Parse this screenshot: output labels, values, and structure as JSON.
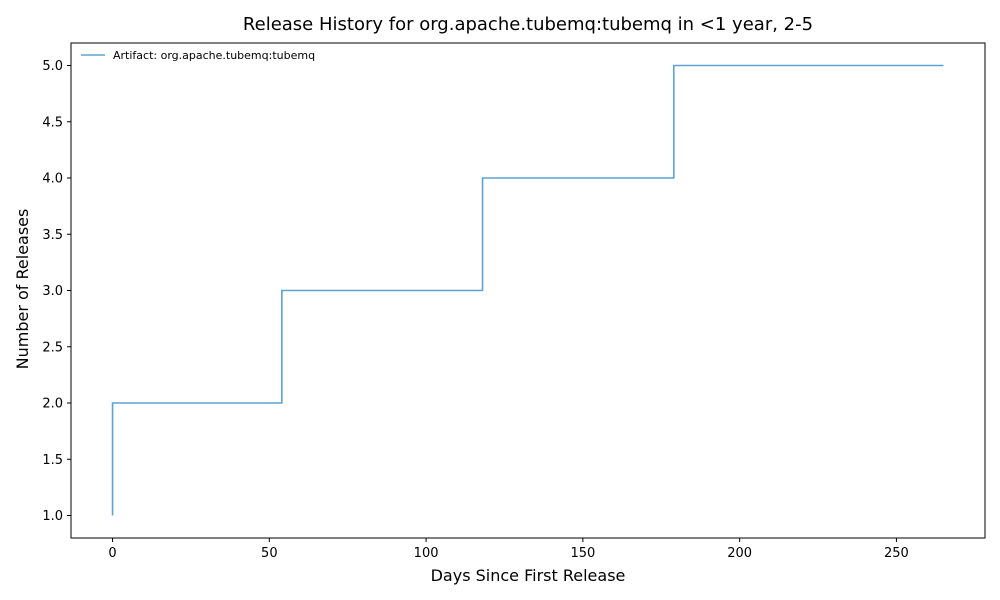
{
  "chart_data": {
    "type": "line",
    "drawstyle": "step-post",
    "title": "Release History for org.apache.tubemq:tubemq in <1 year, 2-5",
    "xlabel": "Days Since First Release",
    "ylabel": "Number of Releases",
    "xlim": [
      -13.25,
      278.25
    ],
    "ylim": [
      0.8,
      5.2
    ],
    "xticks": [
      0,
      50,
      100,
      150,
      200,
      250
    ],
    "xtick_labels": [
      "0",
      "50",
      "100",
      "150",
      "200",
      "250"
    ],
    "yticks": [
      1.0,
      1.5,
      2.0,
      2.5,
      3.0,
      3.5,
      4.0,
      4.5,
      5.0
    ],
    "ytick_labels": [
      "1.0",
      "1.5",
      "2.0",
      "2.5",
      "3.0",
      "3.5",
      "4.0",
      "4.5",
      "5.0"
    ],
    "grid": false,
    "legend_position": "top-left",
    "series": [
      {
        "name": "Artifact: org.apache.tubemq:tubemq",
        "color": "#5ba3d0",
        "x": [
          0,
          0,
          54,
          118,
          179,
          265
        ],
        "y": [
          1,
          2,
          3,
          4,
          5,
          5
        ]
      }
    ]
  }
}
